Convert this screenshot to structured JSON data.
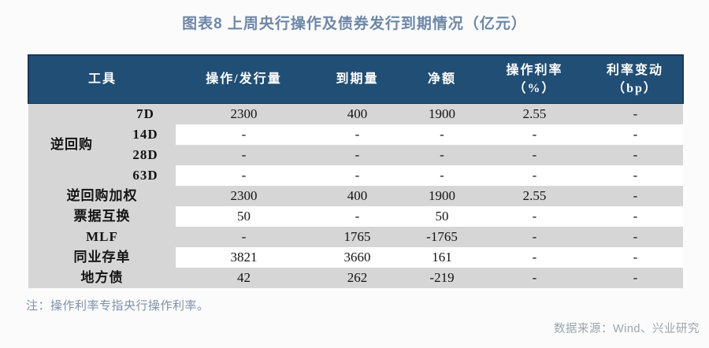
{
  "title": "图表8  上周央行操作及债券发行到期情况（亿元）",
  "table": {
    "headers": {
      "tool": "工具",
      "op_volume": "操作/发行量",
      "maturity": "到期量",
      "net": "净额",
      "op_rate_line1": "操作利率",
      "op_rate_line2": "（%）",
      "rate_change_line1": "利率变动",
      "rate_change_line2": "（bp）"
    },
    "group_label": "逆回购",
    "rows": [
      {
        "tenor": "7D",
        "values": [
          "2300",
          "400",
          "1900",
          "2.55",
          "-"
        ]
      },
      {
        "tenor": "14D",
        "values": [
          "-",
          "-",
          "-",
          "-",
          "-"
        ]
      },
      {
        "tenor": "28D",
        "values": [
          "-",
          "-",
          "-",
          "-",
          "-"
        ]
      },
      {
        "tenor": "63D",
        "values": [
          "-",
          "-",
          "-",
          "-",
          "-"
        ]
      },
      {
        "label": "逆回购加权",
        "values": [
          "2300",
          "400",
          "1900",
          "2.55",
          "-"
        ]
      },
      {
        "label": "票据互换",
        "values": [
          "50",
          "-",
          "50",
          "-",
          "-"
        ]
      },
      {
        "label": "MLF",
        "values": [
          "-",
          "1765",
          "-1765",
          "-",
          "-"
        ]
      },
      {
        "label": "同业存单",
        "values": [
          "3821",
          "3660",
          "161",
          "-",
          "-"
        ]
      },
      {
        "label": "地方债",
        "values": [
          "42",
          "262",
          "-219",
          "-",
          "-"
        ]
      }
    ]
  },
  "note": "注：操作利率专指央行操作利率。",
  "source": "数据来源：Wind、兴业研究",
  "colors": {
    "header_bg": "#214e74",
    "header_border": "#16395a",
    "header_text": "#ffffff",
    "stripe": "#d6d6d6",
    "row_bg": "#ffffff",
    "table_text": "#141414",
    "title": "#6e86a6",
    "note": "#7e91a9",
    "source": "#9aa4ae",
    "page_bg": "#fbfbfb"
  }
}
